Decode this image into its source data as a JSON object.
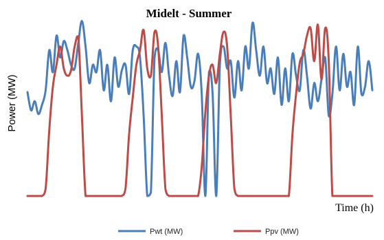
{
  "chart_data": {
    "type": "line",
    "title": "Midelt - Summer",
    "xlabel": "Time (h)",
    "ylabel": "Power (MW)",
    "x_ticks_shown": false,
    "y_ticks_shown": false,
    "grid": false,
    "legend_position": "bottom",
    "x": [
      1,
      2,
      3,
      4,
      5,
      6,
      7,
      8,
      9,
      10,
      11,
      12,
      13,
      14,
      15,
      16,
      17,
      18,
      19,
      20,
      21,
      22,
      23,
      24,
      25,
      26,
      27,
      28,
      29,
      30,
      31,
      32,
      33,
      34,
      35,
      36,
      37,
      38,
      39,
      40,
      41,
      42,
      43,
      44,
      45,
      46,
      47,
      48,
      49,
      50,
      51,
      52,
      53,
      54,
      55,
      56,
      57,
      58,
      59,
      60,
      61,
      62,
      63,
      64,
      65,
      66,
      67,
      68,
      69,
      70,
      71,
      72,
      73,
      74,
      75,
      76,
      77,
      78,
      79,
      80,
      81,
      82,
      83,
      84,
      85,
      86,
      87,
      88,
      89,
      90,
      91,
      92,
      93,
      94,
      95,
      96
    ],
    "ylim": [
      0,
      1
    ],
    "series": [
      {
        "name": "Pwt (MW)",
        "color": "#4a7ebb",
        "values": [
          0.57,
          0.47,
          0.52,
          0.45,
          0.5,
          0.58,
          0.8,
          0.68,
          0.88,
          0.76,
          0.85,
          0.8,
          0.72,
          0.7,
          0.84,
          0.96,
          0.82,
          0.62,
          0.72,
          0.68,
          0.8,
          0.58,
          0.72,
          0.52,
          0.76,
          0.6,
          0.69,
          0.72,
          0.56,
          0.8,
          0.82,
          0.76,
          0.44,
          0.0,
          0.02,
          0.76,
          0.8,
          0.68,
          0.84,
          0.66,
          0.55,
          0.74,
          0.57,
          0.88,
          0.76,
          0.6,
          0.63,
          0.78,
          0.56,
          0.0,
          0.68,
          0.56,
          0.0,
          0.72,
          0.82,
          0.7,
          0.74,
          0.54,
          0.74,
          0.58,
          0.82,
          0.7,
          0.95,
          0.8,
          0.66,
          0.82,
          0.62,
          0.7,
          0.56,
          0.76,
          0.5,
          0.7,
          0.52,
          0.78,
          0.66,
          0.58,
          0.8,
          0.66,
          0.48,
          0.62,
          0.52,
          0.64,
          0.76,
          0.44,
          0.56,
          0.82,
          0.58,
          0.78,
          0.6,
          0.68,
          0.5,
          0.82,
          0.56,
          0.6,
          0.74,
          0.58
        ]
      },
      {
        "name": "Ppv (MW)",
        "color": "#be4b48",
        "values": [
          0.0,
          0.0,
          0.0,
          0.0,
          0.0,
          0.04,
          0.36,
          0.6,
          0.72,
          0.82,
          0.7,
          0.66,
          0.69,
          0.82,
          0.87,
          0.44,
          0.0,
          0.0,
          0.0,
          0.0,
          0.0,
          0.0,
          0.0,
          0.0,
          0.0,
          0.0,
          0.0,
          0.04,
          0.34,
          0.54,
          0.72,
          0.8,
          0.91,
          0.7,
          0.66,
          0.9,
          0.82,
          0.44,
          0.04,
          0.0,
          0.0,
          0.0,
          0.0,
          0.0,
          0.0,
          0.0,
          0.0,
          0.0,
          0.16,
          0.46,
          0.66,
          0.72,
          0.62,
          0.78,
          0.9,
          0.82,
          0.44,
          0.04,
          0.0,
          0.0,
          0.0,
          0.0,
          0.0,
          0.0,
          0.0,
          0.0,
          0.0,
          0.0,
          0.0,
          0.0,
          0.0,
          0.0,
          0.0,
          0.34,
          0.56,
          0.73,
          0.78,
          0.88,
          0.92,
          0.74,
          0.94,
          0.64,
          0.92,
          0.74,
          0.0,
          0.0,
          0.0,
          0.0,
          0.0,
          0.0,
          0.0,
          0.0,
          0.0,
          0.0,
          0.0,
          0.0
        ]
      }
    ]
  }
}
